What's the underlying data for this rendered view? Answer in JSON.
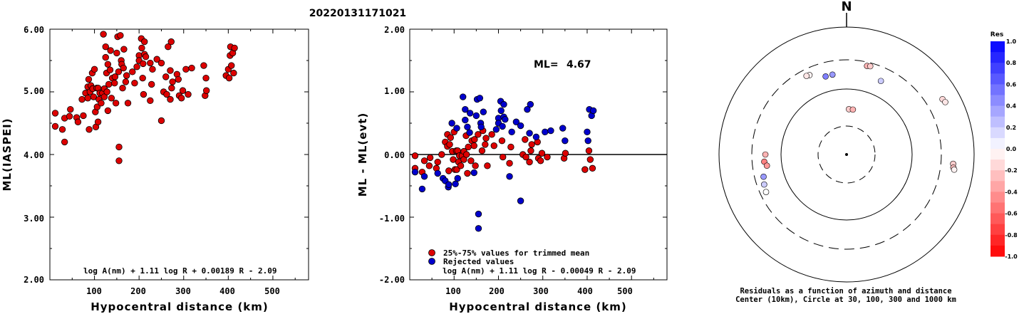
{
  "title": "20220131171021",
  "chart_data": [
    {
      "type": "scatter",
      "xlabel": "Hypocentral distance (km)",
      "ylabel": "ML(IASPEI)",
      "xlim": [
        0,
        580
      ],
      "ylim": [
        2.0,
        6.0
      ],
      "x_ticks": [
        "100",
        "200",
        "300",
        "400",
        "500"
      ],
      "y_ticks": [
        "2.00",
        "3.00",
        "4.00",
        "5.00",
        "6.00"
      ],
      "formula": "log A(nm) + 1.11 log R + 0.00189 R - 2.09",
      "marker_color": "#dd0000",
      "points": [
        [
          12,
          4.45
        ],
        [
          12,
          4.66
        ],
        [
          28,
          4.4
        ],
        [
          33,
          4.58
        ],
        [
          33,
          4.2
        ],
        [
          44,
          4.61
        ],
        [
          46,
          4.72
        ],
        [
          60,
          4.59
        ],
        [
          63,
          4.52
        ],
        [
          72,
          4.88
        ],
        [
          75,
          4.62
        ],
        [
          80,
          4.98
        ],
        [
          85,
          5.08
        ],
        [
          85,
          4.9
        ],
        [
          87,
          5.2
        ],
        [
          88,
          4.4
        ],
        [
          90,
          5.0
        ],
        [
          92,
          5.1
        ],
        [
          95,
          5.3
        ],
        [
          96,
          5.05
        ],
        [
          98,
          4.92
        ],
        [
          100,
          5.36
        ],
        [
          102,
          4.68
        ],
        [
          103,
          4.44
        ],
        [
          105,
          5.06
        ],
        [
          106,
          4.76
        ],
        [
          108,
          4.52
        ],
        [
          108,
          5.06
        ],
        [
          110,
          4.88
        ],
        [
          112,
          4.98
        ],
        [
          115,
          4.82
        ],
        [
          118,
          4.98
        ],
        [
          120,
          5.92
        ],
        [
          122,
          5.05
        ],
        [
          122,
          4.92
        ],
        [
          125,
          5.55
        ],
        [
          125,
          5.72
        ],
        [
          127,
          5.3
        ],
        [
          128,
          5.0
        ],
        [
          130,
          5.44
        ],
        [
          130,
          4.7
        ],
        [
          132,
          5.12
        ],
        [
          135,
          5.35
        ],
        [
          136,
          5.66
        ],
        [
          138,
          4.9
        ],
        [
          140,
          5.22
        ],
        [
          145,
          5.14
        ],
        [
          146,
          5.24
        ],
        [
          148,
          4.82
        ],
        [
          150,
          5.62
        ],
        [
          152,
          5.88
        ],
        [
          154,
          5.32
        ],
        [
          155,
          4.12
        ],
        [
          155,
          3.9
        ],
        [
          158,
          5.9
        ],
        [
          160,
          5.5
        ],
        [
          161,
          5.44
        ],
        [
          163,
          5.06
        ],
        [
          165,
          5.38
        ],
        [
          166,
          5.68
        ],
        [
          170,
          5.16
        ],
        [
          172,
          5.26
        ],
        [
          175,
          4.82
        ],
        [
          185,
          5.32
        ],
        [
          190,
          5.14
        ],
        [
          195,
          5.4
        ],
        [
          200,
          5.58
        ],
        [
          200,
          5.5
        ],
        [
          205,
          5.85
        ],
        [
          206,
          5.7
        ],
        [
          208,
          5.22
        ],
        [
          209,
          5.45
        ],
        [
          210,
          4.96
        ],
        [
          212,
          5.6
        ],
        [
          212,
          5.8
        ],
        [
          215,
          5.56
        ],
        [
          225,
          5.46
        ],
        [
          225,
          4.86
        ],
        [
          228,
          5.12
        ],
        [
          230,
          5.36
        ],
        [
          240,
          5.52
        ],
        [
          250,
          5.46
        ],
        [
          250,
          4.54
        ],
        [
          255,
          5.0
        ],
        [
          260,
          5.24
        ],
        [
          262,
          4.96
        ],
        [
          265,
          5.72
        ],
        [
          270,
          4.88
        ],
        [
          270,
          5.34
        ],
        [
          272,
          5.8
        ],
        [
          273,
          5.06
        ],
        [
          275,
          5.16
        ],
        [
          285,
          5.28
        ],
        [
          288,
          5.2
        ],
        [
          290,
          4.94
        ],
        [
          295,
          4.9
        ],
        [
          298,
          5.02
        ],
        [
          305,
          5.36
        ],
        [
          310,
          4.96
        ],
        [
          318,
          5.38
        ],
        [
          345,
          5.42
        ],
        [
          348,
          4.94
        ],
        [
          350,
          5.22
        ],
        [
          351,
          5.02
        ],
        [
          395,
          5.26
        ],
        [
          400,
          5.36
        ],
        [
          402,
          5.22
        ],
        [
          404,
          5.58
        ],
        [
          405,
          5.72
        ],
        [
          407,
          5.42
        ],
        [
          410,
          5.62
        ],
        [
          412,
          5.3
        ],
        [
          414,
          5.7
        ]
      ]
    },
    {
      "type": "scatter",
      "xlabel": "Hypocentral distance (km)",
      "ylabel": "ML - ML(evt)",
      "xlim": [
        0,
        580
      ],
      "ylim": [
        -2.0,
        2.0
      ],
      "x_ticks": [
        "100",
        "200",
        "300",
        "400",
        "500"
      ],
      "y_ticks": [
        "-2.00",
        "-1.00",
        "0.00",
        "1.00",
        "2.00"
      ],
      "reference_line": 0.0,
      "ml_label": "ML=",
      "ml_value": "4.67",
      "formula": "log A(nm) + 1.11 log R - 0.00049 R - 2.09",
      "series": [
        {
          "name": "25%-75% values for trimmed mean",
          "color": "#dd0000",
          "points": [
            [
              12,
              -0.22
            ],
            [
              12,
              -0.02
            ],
            [
              28,
              -0.28
            ],
            [
              33,
              -0.1
            ],
            [
              44,
              -0.18
            ],
            [
              46,
              -0.05
            ],
            [
              60,
              -0.22
            ],
            [
              63,
              -0.12
            ],
            [
              72,
              0.0
            ],
            [
              80,
              0.2
            ],
            [
              85,
              0.32
            ],
            [
              85,
              0.13
            ],
            [
              88,
              -0.26
            ],
            [
              90,
              0.16
            ],
            [
              92,
              0.27
            ],
            [
              96,
              0.05
            ],
            [
              98,
              -0.08
            ],
            [
              100,
              0.36
            ],
            [
              102,
              -0.24
            ],
            [
              105,
              0.06
            ],
            [
              106,
              -0.24
            ],
            [
              108,
              0.06
            ],
            [
              110,
              -0.12
            ],
            [
              112,
              -0.02
            ],
            [
              115,
              -0.18
            ],
            [
              118,
              -0.02
            ],
            [
              122,
              0.05
            ],
            [
              122,
              -0.08
            ],
            [
              127,
              0.3
            ],
            [
              128,
              0.0
            ],
            [
              130,
              -0.3
            ],
            [
              132,
              0.12
            ],
            [
              138,
              -0.1
            ],
            [
              140,
              0.22
            ],
            [
              145,
              0.14
            ],
            [
              146,
              0.24
            ],
            [
              148,
              -0.18
            ],
            [
              154,
              0.32
            ],
            [
              163,
              0.06
            ],
            [
              165,
              0.38
            ],
            [
              170,
              0.16
            ],
            [
              172,
              0.26
            ],
            [
              175,
              -0.18
            ],
            [
              185,
              0.32
            ],
            [
              190,
              0.14
            ],
            [
              208,
              0.22
            ],
            [
              210,
              -0.04
            ],
            [
              225,
              -0.14
            ],
            [
              228,
              0.12
            ],
            [
              255,
              0.0
            ],
            [
              260,
              0.24
            ],
            [
              262,
              -0.04
            ],
            [
              270,
              -0.12
            ],
            [
              273,
              0.06
            ],
            [
              275,
              0.16
            ],
            [
              288,
              0.2
            ],
            [
              290,
              -0.06
            ],
            [
              295,
              -0.1
            ],
            [
              298,
              0.02
            ],
            [
              310,
              -0.04
            ],
            [
              348,
              -0.06
            ],
            [
              351,
              0.02
            ],
            [
              395,
              -0.24
            ],
            [
              404,
              0.06
            ],
            [
              407,
              -0.08
            ],
            [
              412,
              -0.22
            ]
          ]
        },
        {
          "name": "Rejected values",
          "color": "#0000cc",
          "points": [
            [
              12,
              -0.28
            ],
            [
              28,
              -0.55
            ],
            [
              33,
              -0.35
            ],
            [
              63,
              -0.3
            ],
            [
              75,
              -0.38
            ],
            [
              80,
              -0.42
            ],
            [
              87,
              -0.52
            ],
            [
              88,
              -0.48
            ],
            [
              95,
              0.5
            ],
            [
              103,
              -0.47
            ],
            [
              106,
              0.42
            ],
            [
              108,
              -0.38
            ],
            [
              120,
              0.92
            ],
            [
              125,
              0.55
            ],
            [
              125,
              0.72
            ],
            [
              130,
              0.44
            ],
            [
              135,
              0.35
            ],
            [
              136,
              0.66
            ],
            [
              145,
              -0.29
            ],
            [
              150,
              0.62
            ],
            [
              152,
              0.88
            ],
            [
              155,
              -0.95
            ],
            [
              155,
              -1.18
            ],
            [
              158,
              0.9
            ],
            [
              160,
              0.5
            ],
            [
              161,
              0.44
            ],
            [
              166,
              0.68
            ],
            [
              195,
              0.4
            ],
            [
              200,
              0.58
            ],
            [
              200,
              0.5
            ],
            [
              205,
              0.85
            ],
            [
              206,
              0.7
            ],
            [
              209,
              0.45
            ],
            [
              212,
              0.6
            ],
            [
              212,
              0.8
            ],
            [
              215,
              0.56
            ],
            [
              225,
              -0.35
            ],
            [
              230,
              0.36
            ],
            [
              240,
              0.52
            ],
            [
              250,
              0.46
            ],
            [
              250,
              -0.74
            ],
            [
              265,
              0.72
            ],
            [
              270,
              0.34
            ],
            [
              272,
              0.8
            ],
            [
              285,
              0.28
            ],
            [
              305,
              0.36
            ],
            [
              318,
              0.38
            ],
            [
              345,
              0.42
            ],
            [
              350,
              0.22
            ],
            [
              400,
              0.36
            ],
            [
              402,
              0.22
            ],
            [
              405,
              0.72
            ],
            [
              410,
              0.62
            ],
            [
              414,
              0.7
            ]
          ]
        }
      ]
    },
    {
      "type": "polar-scatter",
      "north_label": "N",
      "caption_line1": "Residuals as a function of azimuth and distance",
      "caption_line2": "Center (10km), Circle at 30, 100, 300 and 1000 km",
      "colorbar_title": "Res",
      "colorbar_ticks": [
        "1.0",
        "0.8",
        "0.6",
        "0.4",
        "0.2",
        "0.0",
        "-0.2",
        "-0.4",
        "-0.6",
        "-0.8",
        "-1.0"
      ],
      "rings_km": [
        30,
        100,
        300,
        1000
      ],
      "points": [
        {
          "az": 3,
          "dist": 52,
          "res": -0.2
        },
        {
          "az": 8,
          "dist": 52,
          "res": -0.3
        },
        {
          "az": 25,
          "dist": 180,
          "res": 0.2
        },
        {
          "az": 350,
          "dist": 180,
          "res": 0.4
        },
        {
          "az": 345,
          "dist": 178,
          "res": 0.5
        },
        {
          "az": 335,
          "dist": 230,
          "res": -0.05
        },
        {
          "az": 333,
          "dist": 235,
          "res": -0.1
        },
        {
          "az": 13,
          "dist": 260,
          "res": -0.3
        },
        {
          "az": 15,
          "dist": 265,
          "res": -0.2
        },
        {
          "az": 60,
          "dist": 540,
          "res": -0.15
        },
        {
          "az": 62,
          "dist": 560,
          "res": -0.1
        },
        {
          "az": 95,
          "dist": 470,
          "res": -0.2
        },
        {
          "az": 97,
          "dist": 480,
          "res": -0.25
        },
        {
          "az": 98,
          "dist": 500,
          "res": -0.05
        },
        {
          "az": 265,
          "dist": 190,
          "res": -0.5
        },
        {
          "az": 262,
          "dist": 175,
          "res": -0.4
        },
        {
          "az": 270,
          "dist": 180,
          "res": -0.3
        },
        {
          "az": 255,
          "dist": 215,
          "res": 0.4
        },
        {
          "az": 250,
          "dist": 230,
          "res": 0.2
        },
        {
          "az": 245,
          "dist": 240,
          "res": 0.0
        }
      ]
    }
  ]
}
